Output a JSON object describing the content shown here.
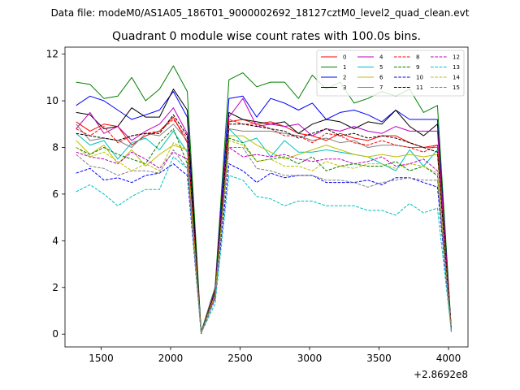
{
  "chart_data": {
    "type": "line",
    "suptitle": "Data file: modeM0/AS1A05_186T01_9000002692_18127cztM0_level2_quad_clean.evt",
    "title": "Quadrant 0 module wise count rates with 100.0s bins.",
    "xlabel": "",
    "ylabel": "",
    "x_offset_label": "+2.8692e8",
    "xlim": [
      1240,
      4140
    ],
    "ylim": [
      -0.55,
      12.3
    ],
    "xticks": [
      "1500",
      "2000",
      "2500",
      "3000",
      "3500",
      "4000"
    ],
    "yticks": [
      "0",
      "2",
      "4",
      "6",
      "8",
      "10",
      "12"
    ],
    "legend_placement": "top-right",
    "x": [
      1320,
      1420,
      1520,
      1620,
      1720,
      1820,
      1920,
      2020,
      2120,
      2220,
      2320,
      2420,
      2520,
      2620,
      2720,
      2820,
      2920,
      3020,
      3120,
      3220,
      3320,
      3420,
      3520,
      3620,
      3720,
      3820,
      3920,
      4020
    ],
    "series": [
      {
        "name": "0",
        "color": "#ff0000",
        "dash": false,
        "values": [
          9.1,
          8.7,
          9.0,
          8.9,
          8.1,
          8.5,
          8.7,
          9.3,
          8.2,
          0.05,
          1.8,
          9.1,
          9.2,
          9.0,
          9.1,
          8.9,
          8.6,
          8.5,
          8.3,
          8.6,
          8.4,
          8.3,
          8.5,
          8.5,
          8.2,
          8.0,
          8.1,
          0.2
        ]
      },
      {
        "name": "1",
        "color": "#008000",
        "dash": false,
        "values": [
          10.8,
          10.7,
          10.1,
          10.2,
          11.0,
          10.0,
          10.5,
          11.5,
          10.4,
          0.1,
          2.0,
          10.9,
          11.2,
          10.6,
          10.8,
          10.8,
          10.1,
          11.1,
          10.5,
          10.8,
          9.9,
          10.1,
          10.4,
          10.2,
          10.5,
          9.5,
          9.8,
          0.2
        ]
      },
      {
        "name": "2",
        "color": "#0000ff",
        "dash": false,
        "values": [
          9.8,
          10.2,
          10.0,
          9.6,
          9.2,
          9.4,
          9.6,
          10.4,
          9.3,
          0.05,
          1.9,
          10.1,
          10.2,
          9.3,
          10.1,
          9.9,
          9.6,
          9.9,
          9.2,
          9.5,
          9.6,
          9.4,
          9.1,
          9.6,
          9.2,
          9.2,
          9.2,
          0.1
        ]
      },
      {
        "name": "3",
        "color": "#000000",
        "dash": false,
        "values": [
          9.5,
          9.4,
          8.8,
          8.9,
          9.7,
          9.3,
          9.3,
          10.5,
          9.6,
          0.02,
          1.8,
          9.5,
          9.2,
          9.1,
          9.0,
          9.1,
          8.6,
          9.0,
          9.2,
          9.1,
          8.8,
          9.1,
          9.0,
          9.6,
          8.9,
          8.5,
          9.0,
          0.15
        ]
      },
      {
        "name": "4",
        "color": "#bf00bf",
        "dash": false,
        "values": [
          8.8,
          9.5,
          8.6,
          8.9,
          8.3,
          8.7,
          9.0,
          9.7,
          8.6,
          0.05,
          1.9,
          9.3,
          10.1,
          8.9,
          9.0,
          8.9,
          9.0,
          8.5,
          8.8,
          8.7,
          8.9,
          8.7,
          8.6,
          8.9,
          8.7,
          8.7,
          8.7,
          0.15
        ]
      },
      {
        "name": "5",
        "color": "#00bfbf",
        "dash": false,
        "values": [
          8.6,
          8.1,
          8.3,
          7.5,
          8.2,
          8.4,
          7.9,
          8.7,
          7.8,
          0.05,
          1.6,
          8.8,
          8.2,
          8.4,
          7.6,
          8.3,
          7.8,
          7.8,
          7.9,
          7.8,
          7.7,
          7.6,
          7.3,
          7.0,
          7.9,
          7.2,
          7.9,
          0.15
        ]
      },
      {
        "name": "6",
        "color": "#bfbf00",
        "dash": false,
        "values": [
          8.3,
          7.7,
          8.1,
          7.3,
          7.9,
          7.2,
          7.7,
          8.1,
          7.9,
          0.05,
          1.7,
          8.5,
          8.5,
          8.1,
          7.8,
          7.5,
          7.7,
          7.9,
          8.1,
          7.9,
          7.7,
          7.6,
          7.7,
          7.6,
          7.7,
          7.6,
          7.7,
          0.15
        ]
      },
      {
        "name": "7",
        "color": "#808080",
        "dash": false,
        "values": [
          9.0,
          8.3,
          8.4,
          8.3,
          8.0,
          8.6,
          8.5,
          9.0,
          8.3,
          0.05,
          1.7,
          8.8,
          8.7,
          8.7,
          8.7,
          8.6,
          8.5,
          8.3,
          8.4,
          8.2,
          8.3,
          8.0,
          8.1,
          8.1,
          8.0,
          8.0,
          8.0,
          0.15
        ]
      },
      {
        "name": "8",
        "color": "#ff0000",
        "dash": true,
        "values": [
          8.8,
          8.5,
          8.9,
          8.2,
          8.5,
          8.6,
          8.7,
          9.2,
          8.4,
          0.05,
          1.8,
          9.2,
          9.0,
          9.0,
          8.8,
          8.5,
          8.5,
          8.2,
          8.6,
          8.5,
          8.2,
          8.1,
          8.3,
          8.1,
          8.0,
          7.8,
          8.1,
          0.15
        ]
      },
      {
        "name": "9",
        "color": "#008000",
        "dash": true,
        "values": [
          8.0,
          7.7,
          8.0,
          7.7,
          7.5,
          7.3,
          8.2,
          8.8,
          7.3,
          0.05,
          1.7,
          8.4,
          8.2,
          7.4,
          7.5,
          7.6,
          7.3,
          7.6,
          7.0,
          7.2,
          7.3,
          7.2,
          7.2,
          7.4,
          7.0,
          7.2,
          6.8,
          0.15
        ]
      },
      {
        "name": "10",
        "color": "#0000ff",
        "dash": true,
        "values": [
          6.9,
          7.1,
          6.6,
          6.7,
          6.5,
          6.8,
          6.9,
          7.3,
          6.8,
          0.05,
          1.5,
          7.3,
          7.0,
          6.5,
          6.9,
          6.7,
          6.8,
          6.8,
          6.5,
          6.5,
          6.5,
          6.6,
          6.4,
          6.7,
          6.7,
          6.5,
          6.3,
          0.1
        ]
      },
      {
        "name": "11",
        "color": "#000000",
        "dash": true,
        "values": [
          8.6,
          8.5,
          8.4,
          8.3,
          8.5,
          8.6,
          8.6,
          9.4,
          8.5,
          0.05,
          1.8,
          9.0,
          9.0,
          8.9,
          8.8,
          8.7,
          8.4,
          8.6,
          8.8,
          8.5,
          8.6,
          8.4,
          8.5,
          8.4,
          8.2,
          8.0,
          7.8,
          0.15
        ]
      },
      {
        "name": "12",
        "color": "#bf00bf",
        "dash": true,
        "values": [
          7.8,
          7.6,
          7.5,
          7.3,
          7.8,
          7.5,
          7.1,
          7.8,
          7.5,
          0.05,
          1.6,
          8.0,
          7.6,
          7.7,
          7.6,
          7.7,
          7.5,
          7.4,
          7.5,
          7.5,
          7.3,
          7.4,
          7.6,
          7.2,
          7.3,
          7.5,
          7.0,
          0.1
        ]
      },
      {
        "name": "13",
        "color": "#00bfbf",
        "dash": true,
        "values": [
          6.1,
          6.4,
          6.0,
          5.5,
          5.9,
          6.2,
          6.2,
          7.6,
          7.1,
          0.05,
          1.3,
          6.8,
          6.6,
          5.9,
          5.8,
          5.5,
          5.7,
          5.7,
          5.5,
          5.5,
          5.5,
          5.3,
          5.3,
          5.1,
          5.6,
          5.2,
          5.4,
          0.1
        ]
      },
      {
        "name": "14",
        "color": "#bfbf00",
        "dash": true,
        "values": [
          8.0,
          7.6,
          7.8,
          7.4,
          7.0,
          7.3,
          7.0,
          8.2,
          7.9,
          0.05,
          1.7,
          8.3,
          8.1,
          7.4,
          7.5,
          7.2,
          7.2,
          7.0,
          7.4,
          7.2,
          7.1,
          7.3,
          7.3,
          7.1,
          7.3,
          7.2,
          6.9,
          0.15
        ]
      },
      {
        "name": "15",
        "color": "#808080",
        "dash": true,
        "values": [
          7.7,
          7.2,
          7.1,
          6.8,
          7.0,
          7.0,
          6.9,
          7.9,
          7.1,
          0.05,
          1.5,
          8.0,
          8.0,
          7.1,
          7.0,
          6.8,
          6.8,
          6.8,
          6.6,
          6.6,
          6.5,
          6.3,
          6.5,
          6.6,
          6.7,
          6.6,
          6.6,
          0.1
        ]
      }
    ]
  }
}
